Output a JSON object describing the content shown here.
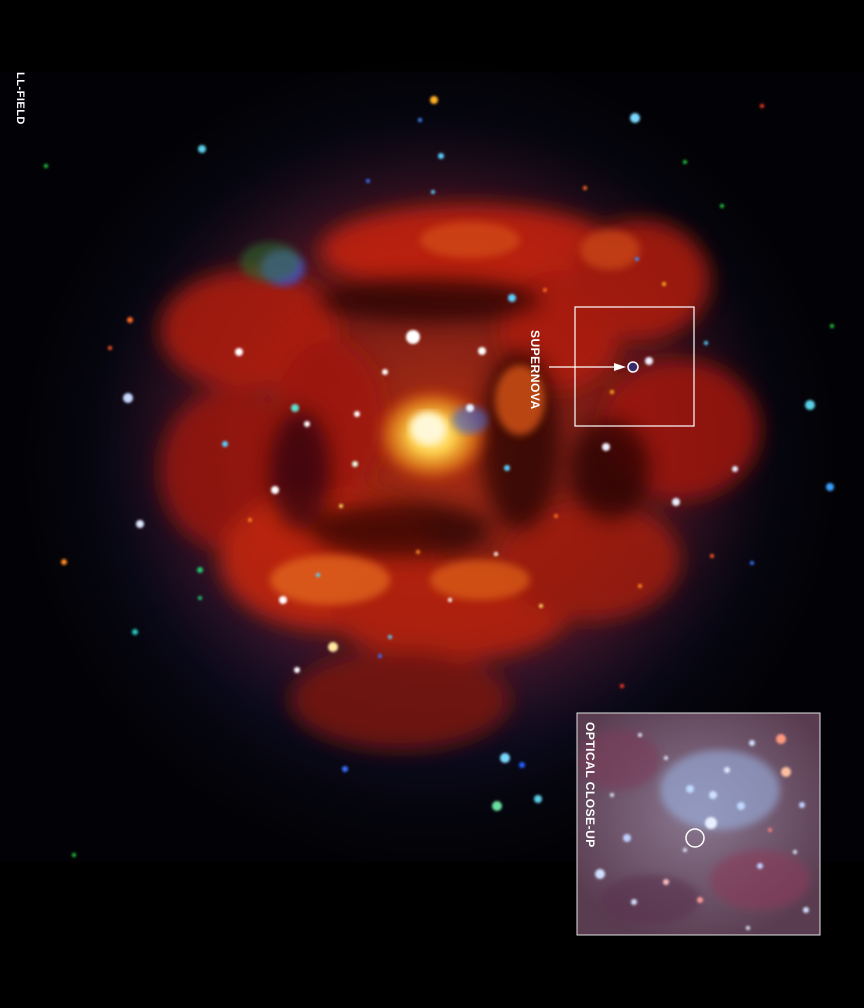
{
  "image": {
    "subject": "x-ray-spiral-galaxy",
    "colors": {
      "background": "#000000",
      "glow_red": "#c81e0a",
      "core_yellow": "#ffd24a",
      "halo_blue": "#1e1e6e",
      "marker": "#ffffff",
      "optical_base": "#6e5572"
    }
  },
  "labels": {
    "field": "LL-FIELD",
    "supernova": "SUPERNOVA",
    "inset": "OPTICAL CLOSE-UP"
  }
}
